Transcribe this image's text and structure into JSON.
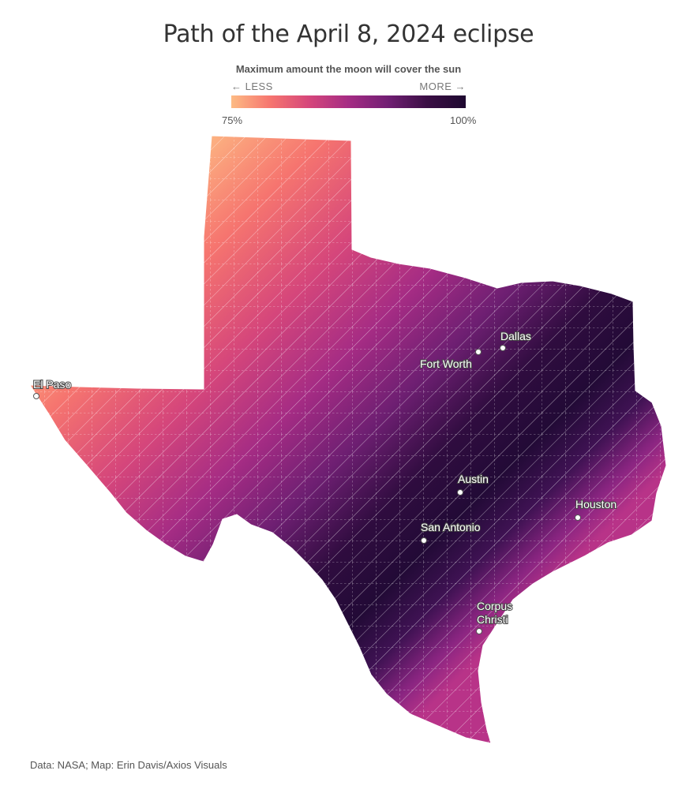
{
  "title": "Path of the April 8, 2024 eclipse",
  "legend": {
    "title": "Maximum amount the moon will cover the sun",
    "less_label": "← LESS",
    "more_label": "MORE →",
    "min_label": "75%",
    "max_label": "100%",
    "colors": [
      "#fdbb84",
      "#f6756f",
      "#d5467b",
      "#a52c84",
      "#721f74",
      "#3b0f45",
      "#1e0830"
    ]
  },
  "map": {
    "region": "Texas",
    "cities": [
      {
        "name": "El Paso",
        "lines": [
          "El Paso"
        ]
      },
      {
        "name": "Dallas",
        "lines": [
          "Dallas"
        ]
      },
      {
        "name": "Fort Worth",
        "lines": [
          "Fort Worth"
        ]
      },
      {
        "name": "Austin",
        "lines": [
          "Austin"
        ]
      },
      {
        "name": "San Antonio",
        "lines": [
          "San Antonio"
        ]
      },
      {
        "name": "Houston",
        "lines": [
          "Houston"
        ]
      },
      {
        "name": "Corpus Christi",
        "lines": [
          "Corpus",
          "Christi"
        ]
      }
    ]
  },
  "credit": "Data: NASA; Map: Erin Davis/Axios Visuals"
}
